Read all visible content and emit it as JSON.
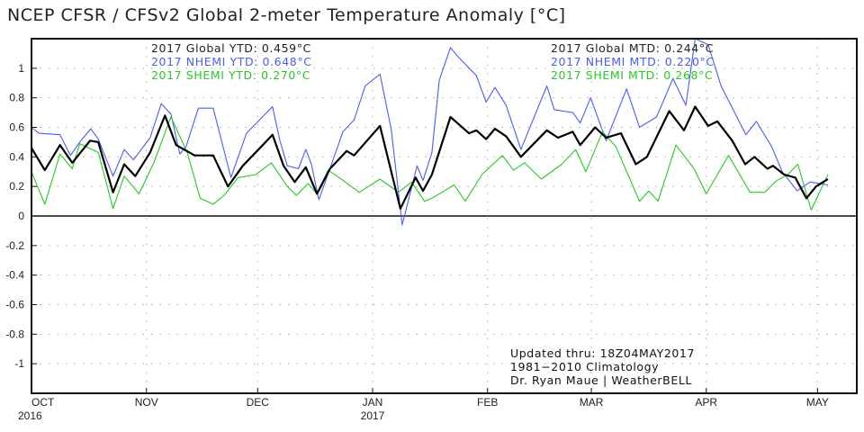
{
  "chart_data": {
    "type": "line",
    "title": "NCEP CFSR / CFSv2 Global 2-meter Temperature Anomaly [°C]",
    "xlabel": "",
    "ylabel": "",
    "x_units": "days since 1 Oct 2016",
    "xlim": [
      0,
      222.6
    ],
    "ylim": [
      -1.2,
      1.2
    ],
    "yticks": [
      1,
      0.8,
      0.6,
      0.4,
      0.2,
      0,
      -0.2,
      -0.4,
      -0.6,
      -0.8,
      -1
    ],
    "ytick_labels": [
      "1",
      "0.8",
      "0.6",
      "0.4",
      "0.2",
      "0",
      "-0.2",
      "-0.4",
      "-0.6",
      "-0.8",
      "-1"
    ],
    "xticks": [
      {
        "day": 0,
        "label": "OCT",
        "sublabel": "2016"
      },
      {
        "day": 31,
        "label": "NOV",
        "sublabel": ""
      },
      {
        "day": 61,
        "label": "DEC",
        "sublabel": ""
      },
      {
        "day": 92,
        "label": "JAN",
        "sublabel": "2017"
      },
      {
        "day": 123,
        "label": "FEB",
        "sublabel": ""
      },
      {
        "day": 151,
        "label": "MAR",
        "sublabel": ""
      },
      {
        "day": 182,
        "label": "APR",
        "sublabel": ""
      },
      {
        "day": 212,
        "label": "MAY",
        "sublabel": ""
      }
    ],
    "grid": true,
    "legend_left": [
      {
        "text": "2017 Global YTD: 0.459°C",
        "color": "#222222"
      },
      {
        "text": "2017 NHEMI YTD: 0.648°C",
        "color": "#4a5cff"
      },
      {
        "text": "2017 SHEMI YTD: 0.270°C",
        "color": "#22cc22"
      }
    ],
    "legend_right": [
      {
        "text": "2017 Global MTD: 0.244°C",
        "color": "#222222"
      },
      {
        "text": "2017 NHEMI MTD: 0.220°C",
        "color": "#4a5cff"
      },
      {
        "text": "2017 SHEMI MTD: 0.268°C",
        "color": "#22cc22"
      }
    ],
    "annotation": [
      "Updated thru: 18Z04MAY2017",
      "1981−2010 Climatology",
      "Dr. Ryan Maue | WeatherBELL"
    ],
    "series": [
      {
        "name": "NHEMI",
        "color": "#4a5cff",
        "width": 1.1,
        "points": [
          [
            0,
            0.6
          ],
          [
            2,
            0.56
          ],
          [
            7.7,
            0.55
          ],
          [
            10.5,
            0.41
          ],
          [
            13,
            0.5
          ],
          [
            16,
            0.59
          ],
          [
            18,
            0.52
          ],
          [
            22,
            0.27
          ],
          [
            25,
            0.45
          ],
          [
            27.5,
            0.38
          ],
          [
            32,
            0.53
          ],
          [
            35,
            0.76
          ],
          [
            37.6,
            0.69
          ],
          [
            40,
            0.42
          ],
          [
            41.7,
            0.47
          ],
          [
            45,
            0.73
          ],
          [
            49,
            0.73
          ],
          [
            53.8,
            0.26
          ],
          [
            58,
            0.56
          ],
          [
            61.5,
            0.65
          ],
          [
            65,
            0.74
          ],
          [
            67,
            0.51
          ],
          [
            69,
            0.34
          ],
          [
            72,
            0.32
          ],
          [
            74,
            0.45
          ],
          [
            75.5,
            0.35
          ],
          [
            77.5,
            0.11
          ],
          [
            80.5,
            0.32
          ],
          [
            84,
            0.57
          ],
          [
            87,
            0.65
          ],
          [
            90,
            0.88
          ],
          [
            94,
            0.96
          ],
          [
            97,
            0.59
          ],
          [
            100,
            -0.06
          ],
          [
            104,
            0.34
          ],
          [
            105.6,
            0.24
          ],
          [
            108,
            0.43
          ],
          [
            110,
            0.92
          ],
          [
            113,
            1.14
          ],
          [
            115,
            1.08
          ],
          [
            120,
            0.95
          ],
          [
            122.6,
            0.77
          ],
          [
            125,
            0.87
          ],
          [
            128,
            0.75
          ],
          [
            132,
            0.45
          ],
          [
            139,
            0.88
          ],
          [
            141,
            0.72
          ],
          [
            146,
            0.7
          ],
          [
            148,
            0.63
          ],
          [
            150.8,
            0.8
          ],
          [
            155,
            0.51
          ],
          [
            160.5,
            0.86
          ],
          [
            164,
            0.6
          ],
          [
            168.6,
            0.67
          ],
          [
            173,
            0.93
          ],
          [
            176.5,
            0.75
          ],
          [
            179,
            1.2
          ],
          [
            182.5,
            1.16
          ],
          [
            186,
            0.88
          ],
          [
            192.7,
            0.55
          ],
          [
            195.5,
            0.64
          ],
          [
            199.6,
            0.47
          ],
          [
            202.5,
            0.3
          ],
          [
            206.5,
            0.17
          ],
          [
            210,
            0.23
          ],
          [
            214.8,
            0.21
          ]
        ]
      },
      {
        "name": "SHEMI",
        "color": "#22cc22",
        "width": 1.1,
        "points": [
          [
            0,
            0.3
          ],
          [
            3.6,
            0.08
          ],
          [
            7.7,
            0.42
          ],
          [
            11,
            0.32
          ],
          [
            13,
            0.49
          ],
          [
            18,
            0.43
          ],
          [
            22,
            0.05
          ],
          [
            25,
            0.27
          ],
          [
            29,
            0.15
          ],
          [
            33,
            0.36
          ],
          [
            37.6,
            0.67
          ],
          [
            42,
            0.43
          ],
          [
            45.5,
            0.12
          ],
          [
            49,
            0.08
          ],
          [
            52,
            0.14
          ],
          [
            55.7,
            0.26
          ],
          [
            60.5,
            0.28
          ],
          [
            64.7,
            0.36
          ],
          [
            69,
            0.2
          ],
          [
            71.5,
            0.14
          ],
          [
            74.6,
            0.22
          ],
          [
            77,
            0.15
          ],
          [
            80,
            0.31
          ],
          [
            83,
            0.26
          ],
          [
            88.4,
            0.16
          ],
          [
            94,
            0.25
          ],
          [
            99,
            0.16
          ],
          [
            102.5,
            0.23
          ],
          [
            106,
            0.1
          ],
          [
            108,
            0.12
          ],
          [
            114,
            0.21
          ],
          [
            117,
            0.1
          ],
          [
            121.5,
            0.28
          ],
          [
            127,
            0.41
          ],
          [
            130,
            0.31
          ],
          [
            133,
            0.36
          ],
          [
            137.5,
            0.25
          ],
          [
            143,
            0.35
          ],
          [
            146.8,
            0.45
          ],
          [
            149.5,
            0.3
          ],
          [
            154,
            0.57
          ],
          [
            157.6,
            0.47
          ],
          [
            164,
            0.1
          ],
          [
            166.5,
            0.17
          ],
          [
            169,
            0.1
          ],
          [
            173.8,
            0.48
          ],
          [
            178.7,
            0.32
          ],
          [
            182,
            0.15
          ],
          [
            188,
            0.41
          ],
          [
            193.8,
            0.16
          ],
          [
            197.8,
            0.16
          ],
          [
            201,
            0.24
          ],
          [
            204,
            0.28
          ],
          [
            206.7,
            0.35
          ],
          [
            210.3,
            0.04
          ],
          [
            214.8,
            0.28
          ]
        ]
      },
      {
        "name": "Global",
        "color": "#000000",
        "width": 2.2,
        "points": [
          [
            0,
            0.46
          ],
          [
            3.6,
            0.31
          ],
          [
            7.7,
            0.48
          ],
          [
            11,
            0.36
          ],
          [
            15.8,
            0.51
          ],
          [
            18,
            0.5
          ],
          [
            22,
            0.16
          ],
          [
            25,
            0.35
          ],
          [
            28,
            0.27
          ],
          [
            32,
            0.43
          ],
          [
            36,
            0.68
          ],
          [
            39,
            0.48
          ],
          [
            44,
            0.41
          ],
          [
            49,
            0.41
          ],
          [
            53,
            0.2
          ],
          [
            57,
            0.34
          ],
          [
            62,
            0.47
          ],
          [
            65,
            0.55
          ],
          [
            68,
            0.34
          ],
          [
            71,
            0.23
          ],
          [
            74,
            0.33
          ],
          [
            77,
            0.15
          ],
          [
            80.5,
            0.32
          ],
          [
            85,
            0.44
          ],
          [
            87,
            0.41
          ],
          [
            94,
            0.61
          ],
          [
            99.5,
            0.05
          ],
          [
            103.6,
            0.26
          ],
          [
            105.6,
            0.17
          ],
          [
            108,
            0.28
          ],
          [
            113,
            0.67
          ],
          [
            118,
            0.56
          ],
          [
            120,
            0.58
          ],
          [
            122.6,
            0.52
          ],
          [
            125,
            0.59
          ],
          [
            128,
            0.54
          ],
          [
            132,
            0.4
          ],
          [
            139,
            0.58
          ],
          [
            142,
            0.53
          ],
          [
            146,
            0.57
          ],
          [
            148,
            0.48
          ],
          [
            152,
            0.6
          ],
          [
            155,
            0.53
          ],
          [
            159,
            0.56
          ],
          [
            163,
            0.35
          ],
          [
            166,
            0.4
          ],
          [
            172,
            0.71
          ],
          [
            176,
            0.58
          ],
          [
            179,
            0.74
          ],
          [
            182.5,
            0.61
          ],
          [
            185,
            0.64
          ],
          [
            189,
            0.51
          ],
          [
            192.5,
            0.35
          ],
          [
            195,
            0.4
          ],
          [
            198.5,
            0.32
          ],
          [
            200,
            0.34
          ],
          [
            203,
            0.28
          ],
          [
            206,
            0.26
          ],
          [
            209,
            0.12
          ],
          [
            211.6,
            0.2
          ],
          [
            214.8,
            0.25
          ]
        ]
      }
    ]
  }
}
